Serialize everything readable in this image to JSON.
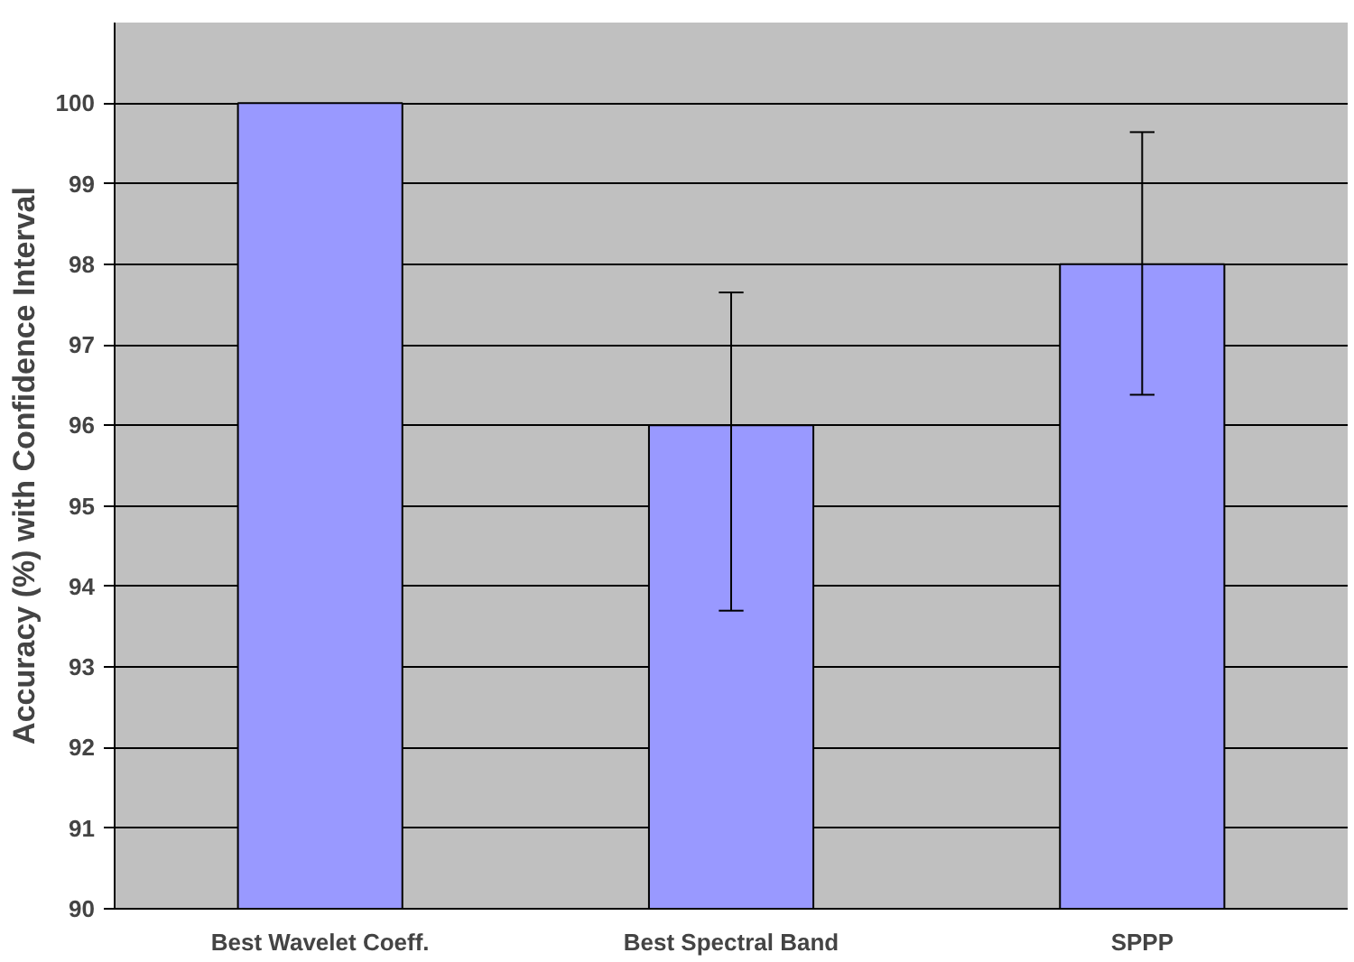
{
  "chart_data": {
    "type": "bar",
    "ylabel": "Accuracy (%) with Confidence Interval",
    "categories": [
      "Best Wavelet Coeff.",
      "Best Spectral Band",
      "SPPP"
    ],
    "values": [
      100,
      96,
      98
    ],
    "color": "#9999ff",
    "errors": [
      null,
      [
        93.7,
        97.65
      ],
      [
        96.38,
        99.64
      ]
    ],
    "ylim": [
      90,
      101
    ],
    "yticks": [
      90,
      91,
      92,
      93,
      94,
      95,
      96,
      97,
      98,
      99,
      100
    ],
    "grid": "y"
  }
}
